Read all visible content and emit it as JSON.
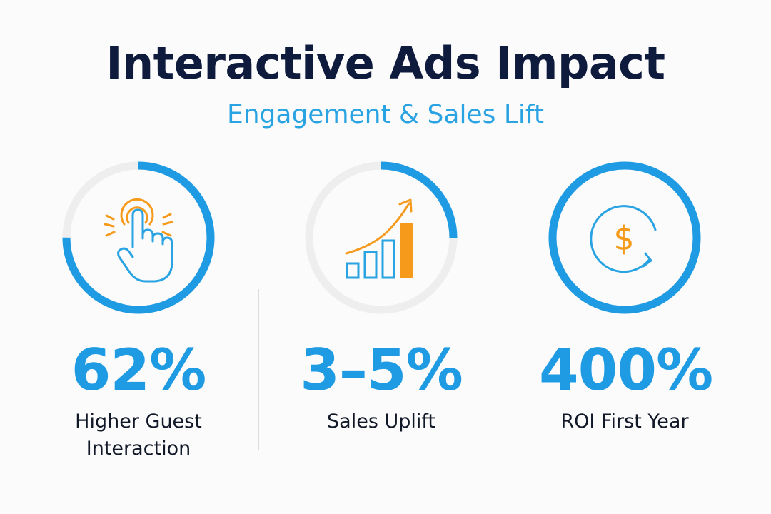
{
  "header": {
    "title": "Interactive Ads Impact",
    "subtitle": "Engagement & Sales Lift"
  },
  "colors": {
    "title": "#0f1b3d",
    "accent_blue": "#1f9be3",
    "accent_orange": "#f59a1b",
    "ring_track": "#eeeeef",
    "label": "#111827"
  },
  "stats": [
    {
      "icon": "tap-hand-icon",
      "value": "62%",
      "label": "Higher Guest Interaction",
      "ring_fill": 0.75
    },
    {
      "icon": "growth-chart-icon",
      "value": "3–5%",
      "label": "Sales Uplift",
      "ring_fill": 0.25
    },
    {
      "icon": "dollar-cycle-icon",
      "value": "400%",
      "label": "ROI First Year",
      "ring_fill": 1.0
    }
  ]
}
